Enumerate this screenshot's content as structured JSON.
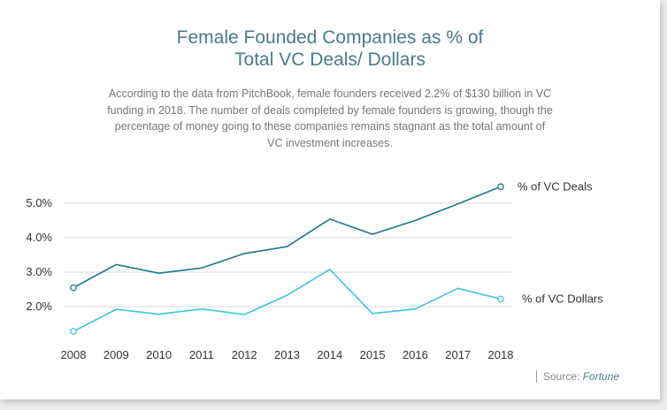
{
  "chart_data": {
    "type": "line",
    "title_line1": "Female Founded Companies as % of",
    "title_line2": "Total VC Deals/ Dollars",
    "subtitle": "According to the data from PitchBook, female founders received 2.2% of $130 billion in VC funding in 2018. The number of deals completed by female founders is growing, though the percentage of money going to these companies remains stagnant as the total amount of VC investment increases.",
    "x": [
      "2008",
      "2009",
      "2010",
      "2011",
      "2012",
      "2013",
      "2014",
      "2015",
      "2016",
      "2017",
      "2018"
    ],
    "y_ticks": [
      "2.0%",
      "3.0%",
      "4.0%",
      "5.0%"
    ],
    "y_tick_values": [
      2,
      3,
      4,
      5
    ],
    "ylim": [
      1.0,
      5.5
    ],
    "grid": true,
    "series": [
      {
        "name": "% of VC Deals",
        "color": "#1a7a80",
        "values": [
          2.55,
          3.22,
          2.97,
          3.12,
          3.54,
          3.74,
          4.54,
          4.1,
          4.5,
          4.98,
          5.48
        ]
      },
      {
        "name": "% of VC Dollars",
        "color": "#3ec4de",
        "values": [
          1.28,
          1.92,
          1.78,
          1.93,
          1.77,
          2.33,
          3.08,
          1.8,
          1.93,
          2.53,
          2.22
        ]
      }
    ],
    "source_prefix": "Source:",
    "source_name": "Fortune"
  }
}
